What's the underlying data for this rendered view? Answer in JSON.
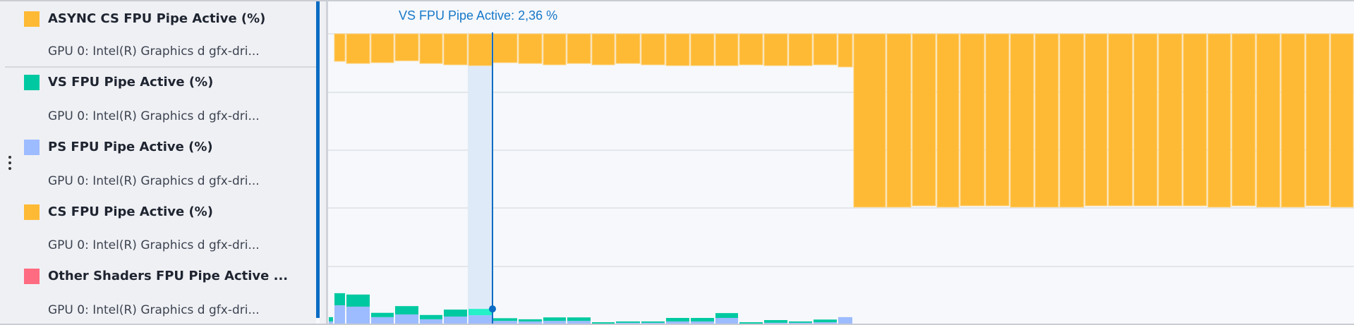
{
  "legend": {
    "items": [
      {
        "title": "ASYNC CS FPU Pipe Active (%)",
        "subtitle": "GPU 0: Intel(R) Graphics d gfx-dri...",
        "color": "#ffba35"
      },
      {
        "title": "VS FPU Pipe Active (%)",
        "subtitle": "GPU 0: Intel(R) Graphics d gfx-dri...",
        "color": "#00c9a1"
      },
      {
        "title": "PS FPU Pipe Active (%)",
        "subtitle": "GPU 0: Intel(R) Graphics d gfx-dri...",
        "color": "#9dbbff"
      },
      {
        "title": "CS FPU Pipe Active (%)",
        "subtitle": "GPU 0: Intel(R) Graphics d gfx-dri...",
        "color": "#ffba35"
      },
      {
        "title": "Other Shaders FPU Pipe Active ...",
        "subtitle": "GPU 0: Intel(R) Graphics d gfx-dri...",
        "color": "#ff6b81"
      }
    ],
    "menu_icon": "vertical-ellipsis-icon"
  },
  "tooltip": {
    "text": "VS FPU Pipe Active: 2,36 %"
  },
  "chart_data": {
    "type": "bar",
    "grid": true,
    "cursor_index": 7,
    "cursor_highlight_color": "#dfeaf8",
    "cursor_color": "#0a6cc4",
    "hover_color": "#25f0c8",
    "series": [
      {
        "color": "#ffba35",
        "direction": "down-from-top",
        "values": [
          null,
          10.2,
          11.0,
          10.7,
          10.0,
          11.0,
          11.5,
          11.8,
          10.7,
          11.0,
          11.5,
          11.0,
          11.5,
          11.0,
          11.5,
          11.8,
          11.8,
          11.8,
          11.5,
          11.8,
          11.8,
          11.5,
          12.3,
          64.4,
          64.4,
          63.9,
          64.4,
          63.9,
          63.9,
          64.4,
          64.4,
          64.4,
          63.9,
          63.9,
          63.9,
          63.9,
          63.9,
          64.4,
          63.9,
          64.4,
          64.4,
          63.9,
          64.4
        ]
      },
      {
        "name": "PS FPU Pipe Active (%)",
        "color": "#9dbbff",
        "stack": "bottom",
        "values": [
          0.8,
          6.8,
          6.3,
          2.4,
          3.4,
          1.6,
          2.6,
          3.1,
          1.0,
          0.8,
          1.0,
          1.0,
          0,
          0.3,
          0.3,
          0.8,
          0.8,
          2.1,
          0,
          0.3,
          0.3,
          0.5,
          2.4
        ]
      },
      {
        "name": "VS FPU Pipe Active (%)",
        "color": "#00c9a1",
        "stack": "bottom",
        "values": [
          1.6,
          4.5,
          4.5,
          1.6,
          3.1,
          1.6,
          2.6,
          2.36,
          1.0,
          0.8,
          1.3,
          1.3,
          0.5,
          0.5,
          0.5,
          1.3,
          1.3,
          1.8,
          0.5,
          1.0,
          0.5,
          1.0,
          0
        ]
      }
    ]
  }
}
